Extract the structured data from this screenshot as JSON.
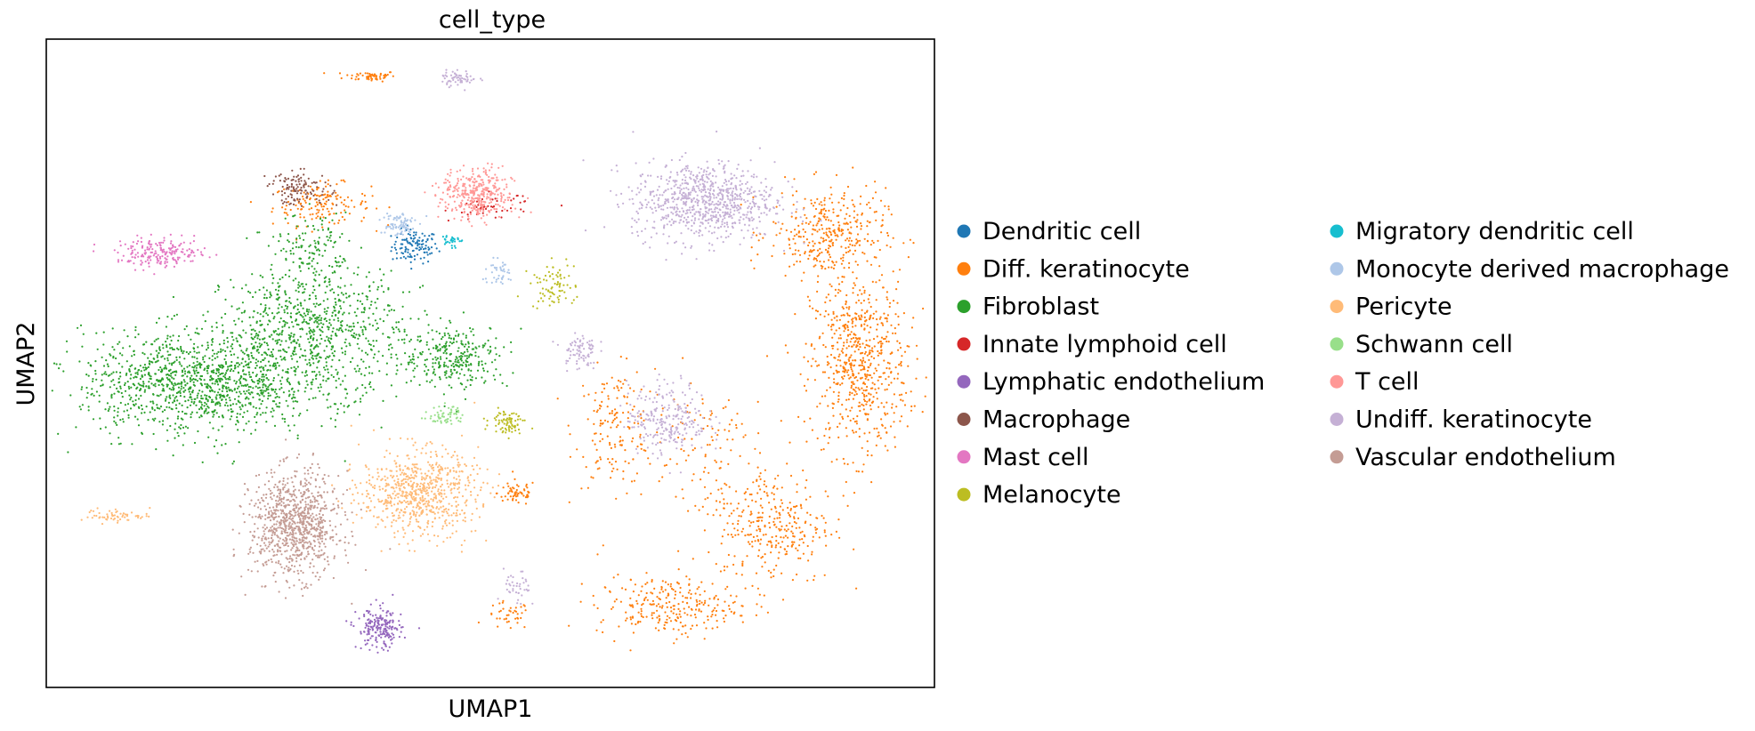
{
  "chart_data": {
    "type": "scatter",
    "title": "cell_type",
    "xlabel": "UMAP1",
    "ylabel": "UMAP2",
    "xticks": [],
    "yticks": [],
    "xlim": [
      0,
      100
    ],
    "ylim": [
      0,
      100
    ],
    "grid": false,
    "legend_position": "right, outside plot, two columns",
    "series": [
      {
        "name": "Dendritic cell",
        "color": "#1f77b4",
        "clusters": [
          {
            "cx": 41.5,
            "cy": 68.0,
            "rx": 2.6,
            "ry": 2.6,
            "n": 120
          }
        ]
      },
      {
        "name": "Diff. keratinocyte",
        "color": "#ff7f0e",
        "clusters": [
          {
            "cx": 36.5,
            "cy": 94.3,
            "rx": 3.0,
            "ry": 0.8,
            "n": 60
          },
          {
            "cx": 31.0,
            "cy": 74.5,
            "rx": 5.5,
            "ry": 3.2,
            "n": 150
          },
          {
            "cx": 53.0,
            "cy": 30.0,
            "rx": 2.2,
            "ry": 2.0,
            "n": 60
          },
          {
            "cx": 52.0,
            "cy": 11.0,
            "rx": 2.5,
            "ry": 2.2,
            "n": 40
          },
          {
            "cx": 64.0,
            "cy": 40.0,
            "rx": 4.5,
            "ry": 9.0,
            "n": 160
          },
          {
            "cx": 91.5,
            "cy": 50.0,
            "rx": 5.5,
            "ry": 14.0,
            "n": 650
          },
          {
            "cx": 88.0,
            "cy": 70.0,
            "rx": 6.5,
            "ry": 7.0,
            "n": 350
          },
          {
            "cx": 82.0,
            "cy": 25.0,
            "rx": 6.5,
            "ry": 9.0,
            "n": 300
          },
          {
            "cx": 70.0,
            "cy": 12.5,
            "rx": 8.0,
            "ry": 4.5,
            "n": 260
          },
          {
            "cx": 74.0,
            "cy": 36.0,
            "rx": 7.0,
            "ry": 14.0,
            "n": 120
          }
        ]
      },
      {
        "name": "Fibroblast",
        "color": "#2ca02c",
        "clusters": [
          {
            "cx": 17.0,
            "cy": 47.0,
            "rx": 13.0,
            "ry": 8.0,
            "n": 1200
          },
          {
            "cx": 30.0,
            "cy": 55.0,
            "rx": 10.0,
            "ry": 10.0,
            "n": 800
          },
          {
            "cx": 46.0,
            "cy": 51.0,
            "rx": 6.0,
            "ry": 5.0,
            "n": 300
          },
          {
            "cx": 30.0,
            "cy": 68.0,
            "rx": 4.0,
            "ry": 5.0,
            "n": 120
          }
        ]
      },
      {
        "name": "Innate lymphoid cell",
        "color": "#d62728",
        "clusters": [
          {
            "cx": 50.0,
            "cy": 74.0,
            "rx": 4.5,
            "ry": 2.0,
            "n": 50
          }
        ]
      },
      {
        "name": "Lymphatic endothelium",
        "color": "#9467bd",
        "clusters": [
          {
            "cx": 37.5,
            "cy": 9.0,
            "rx": 2.5,
            "ry": 3.2,
            "n": 200
          }
        ]
      },
      {
        "name": "Macrophage",
        "color": "#8c564b",
        "clusters": [
          {
            "cx": 28.5,
            "cy": 77.0,
            "rx": 3.5,
            "ry": 2.5,
            "n": 120
          }
        ]
      },
      {
        "name": "Mast cell",
        "color": "#e377c2",
        "clusters": [
          {
            "cx": 13.0,
            "cy": 67.0,
            "rx": 5.0,
            "ry": 2.2,
            "n": 200
          }
        ]
      },
      {
        "name": "Melanocyte",
        "color": "#bcbd22",
        "clusters": [
          {
            "cx": 57.0,
            "cy": 62.0,
            "rx": 2.5,
            "ry": 3.5,
            "n": 80
          },
          {
            "cx": 52.0,
            "cy": 41.0,
            "rx": 2.0,
            "ry": 1.8,
            "n": 80
          }
        ]
      },
      {
        "name": "Migratory dendritic cell",
        "color": "#17becf",
        "clusters": [
          {
            "cx": 45.5,
            "cy": 69.0,
            "rx": 1.0,
            "ry": 1.2,
            "n": 30
          }
        ]
      },
      {
        "name": "Monocyte derived macrophage",
        "color": "#aec7e8",
        "clusters": [
          {
            "cx": 39.5,
            "cy": 71.5,
            "rx": 2.0,
            "ry": 2.0,
            "n": 80
          },
          {
            "cx": 51.0,
            "cy": 64.0,
            "rx": 2.0,
            "ry": 2.0,
            "n": 40
          }
        ]
      },
      {
        "name": "Pericyte",
        "color": "#ffbb78",
        "clusters": [
          {
            "cx": 42.0,
            "cy": 30.0,
            "rx": 6.5,
            "ry": 6.5,
            "n": 700
          },
          {
            "cx": 8.0,
            "cy": 26.5,
            "rx": 3.8,
            "ry": 1.0,
            "n": 60
          }
        ]
      },
      {
        "name": "Schwann cell",
        "color": "#98df8a",
        "clusters": [
          {
            "cx": 45.0,
            "cy": 42.0,
            "rx": 2.0,
            "ry": 1.5,
            "n": 60
          }
        ]
      },
      {
        "name": "T cell",
        "color": "#ff9896",
        "clusters": [
          {
            "cx": 48.5,
            "cy": 76.0,
            "rx": 4.0,
            "ry": 4.0,
            "n": 350
          }
        ]
      },
      {
        "name": "Undiff. keratinocyte",
        "color": "#c5b0d5",
        "clusters": [
          {
            "cx": 74.0,
            "cy": 75.0,
            "rx": 8.0,
            "ry": 6.0,
            "n": 800
          },
          {
            "cx": 70.0,
            "cy": 41.5,
            "rx": 4.5,
            "ry": 5.5,
            "n": 250
          },
          {
            "cx": 60.0,
            "cy": 52.0,
            "rx": 2.0,
            "ry": 3.0,
            "n": 80
          },
          {
            "cx": 46.5,
            "cy": 94.0,
            "rx": 2.0,
            "ry": 1.2,
            "n": 60
          },
          {
            "cx": 53.0,
            "cy": 15.0,
            "rx": 1.5,
            "ry": 3.0,
            "n": 40
          }
        ]
      },
      {
        "name": "Vascular endothelium",
        "color": "#c49c94",
        "clusters": [
          {
            "cx": 28.0,
            "cy": 25.0,
            "rx": 5.0,
            "ry": 8.0,
            "n": 900
          }
        ]
      }
    ]
  }
}
